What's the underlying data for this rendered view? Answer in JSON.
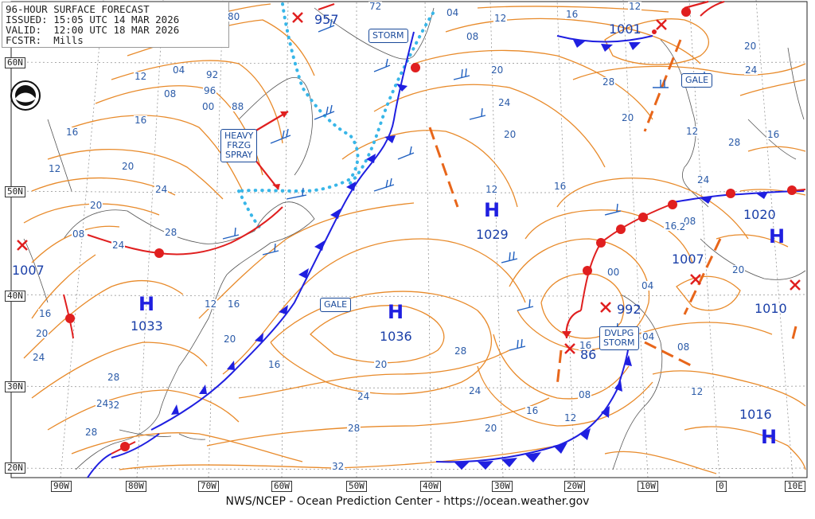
{
  "header": {
    "title": "96-HOUR SURFACE FORECAST",
    "issued": "ISSUED: 15:05 UTC 14 MAR 2026",
    "valid": "VALID:  12:00 UTC 18 MAR 2026",
    "forecaster": "FCSTR:  Mills"
  },
  "footer": "NWS/NCEP - Ocean Prediction Center - https://ocean.weather.gov",
  "logo": "noaa-logo",
  "lat_labels": [
    "60N",
    "50N",
    "40N",
    "30N",
    "20N"
  ],
  "lon_labels": [
    "90W",
    "80W",
    "70W",
    "60W",
    "50W",
    "40W",
    "30W",
    "20W",
    "10W",
    "0",
    "10E"
  ],
  "pressure_systems": [
    {
      "type": "H",
      "pressure": "1033"
    },
    {
      "type": "H",
      "pressure": "1036"
    },
    {
      "type": "H",
      "pressure": "1029"
    },
    {
      "type": "H",
      "pressure": "1020"
    },
    {
      "type": "H",
      "pressure": "1016"
    },
    {
      "type": "L",
      "pressure": "957"
    },
    {
      "type": "L",
      "pressure": "992"
    },
    {
      "type": "L",
      "pressure": "1001"
    },
    {
      "type": "L",
      "pressure": "1007"
    },
    {
      "type": "L",
      "pressure": "1007"
    },
    {
      "type": "L",
      "pressure": "1010"
    }
  ],
  "labels": {
    "storm_top": "STORM",
    "gale_mid": "GALE",
    "gale_ne": "GALE",
    "dvlpg_storm": "DVLPG\nSTORM",
    "heavy_frzg": "HEAVY\nFRZG\nSPRAY",
    "future_low_pressure": "86"
  },
  "isobar_labels": [
    "80",
    "72",
    "04",
    "12",
    "08",
    "92",
    "96",
    "00",
    "88",
    "04",
    "08",
    "12",
    "16",
    "20",
    "24",
    "28",
    "24",
    "20",
    "16",
    "12",
    "08",
    "16",
    "20",
    "24",
    "28",
    "32",
    "28",
    "24",
    "20",
    "16",
    "12",
    "16",
    "20",
    "24",
    "28",
    "32",
    "28",
    "24",
    "20",
    "16",
    "12",
    "08",
    "04",
    "00",
    "04",
    "08",
    "12",
    "16",
    "20",
    "24",
    "28",
    "12",
    "16",
    "20",
    "12",
    "08",
    "12",
    "16",
    "20",
    "24",
    "28",
    "16",
    "20",
    "24",
    "28",
    "20",
    "16",
    "12"
  ],
  "colors": {
    "isobar": "#e88a2a",
    "cold_front": "#1f1fe0",
    "warm_front": "#e01f1f",
    "trough": "#e8661a",
    "ice_edge": "#38b6e8",
    "land": "#555555",
    "grid": "#888888"
  }
}
